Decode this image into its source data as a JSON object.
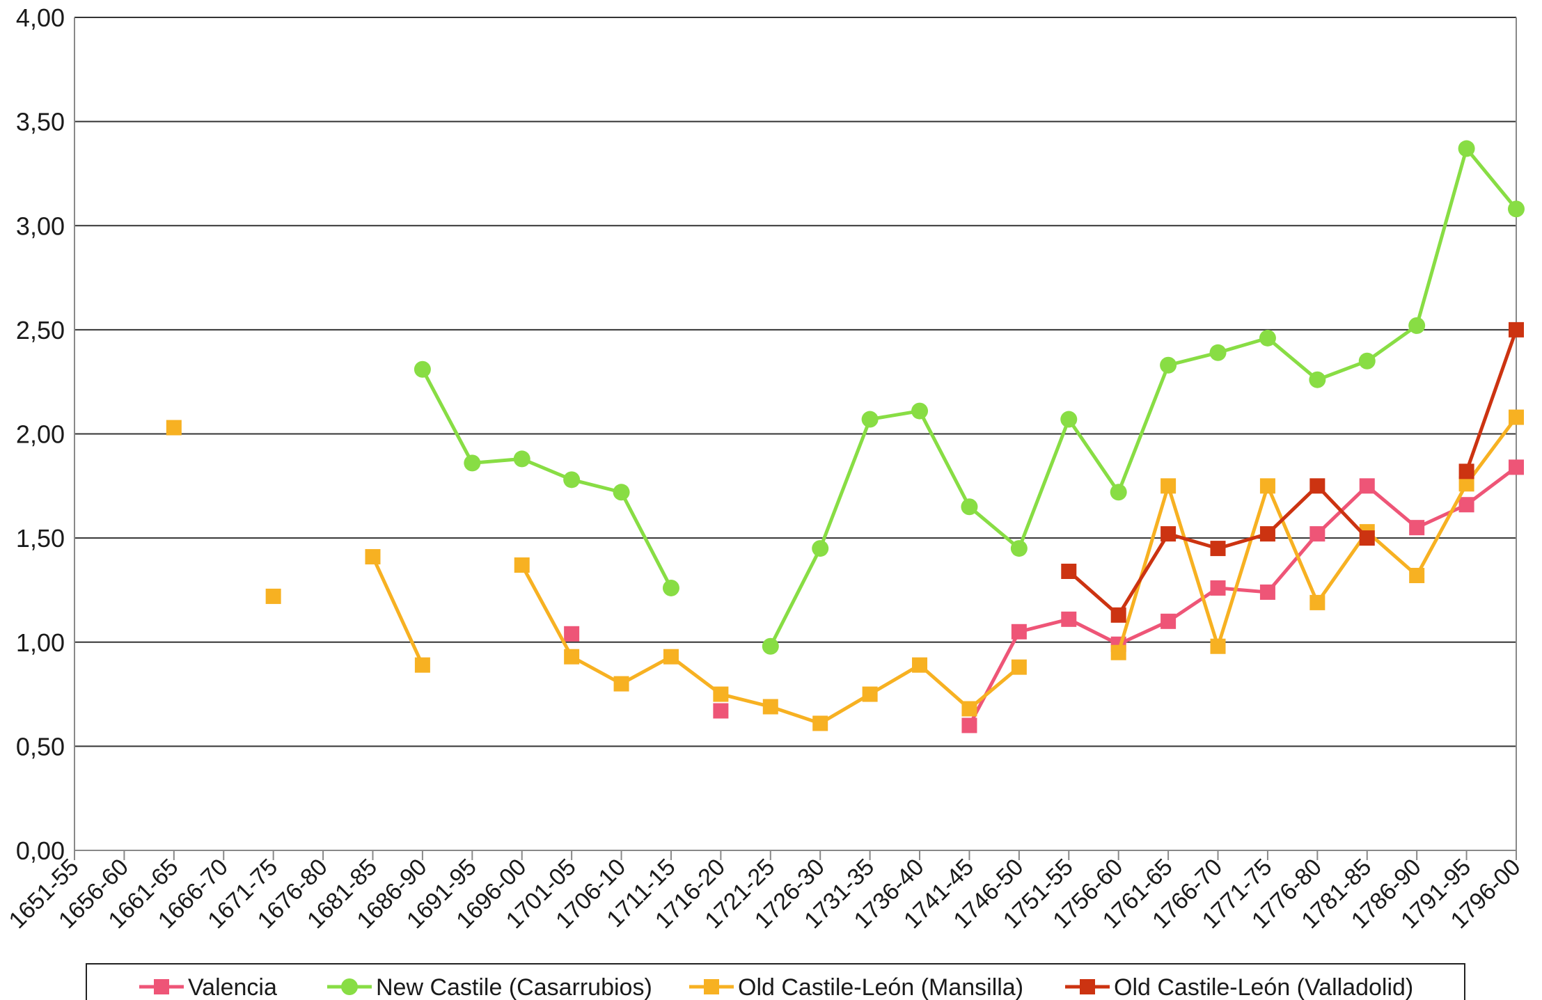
{
  "chart_data": {
    "type": "line",
    "title": "",
    "xlabel": "",
    "ylabel": "",
    "ylim": [
      0,
      4
    ],
    "y_ticks": [
      "0,00",
      "0,50",
      "1,00",
      "1,50",
      "2,00",
      "2,50",
      "3,00",
      "3,50",
      "4,00"
    ],
    "grid": true,
    "legend_position": "bottom",
    "categories": [
      "1651-55",
      "1656-60",
      "1661-65",
      "1666-70",
      "1671-75",
      "1676-80",
      "1681-85",
      "1686-90",
      "1691-95",
      "1696-00",
      "1701-05",
      "1706-10",
      "1711-15",
      "1716-20",
      "1721-25",
      "1726-30",
      "1731-35",
      "1736-40",
      "1741-45",
      "1746-50",
      "1751-55",
      "1756-60",
      "1761-65",
      "1766-70",
      "1771-75",
      "1776-80",
      "1781-85",
      "1786-90",
      "1791-95",
      "1796-00"
    ],
    "series": [
      {
        "name": "Valencia",
        "color": "#ee5577",
        "marker": "square",
        "values": [
          null,
          null,
          null,
          null,
          null,
          null,
          null,
          null,
          null,
          null,
          1.04,
          null,
          null,
          0.67,
          null,
          null,
          null,
          null,
          0.6,
          1.05,
          1.11,
          0.99,
          1.1,
          1.26,
          1.24,
          1.52,
          1.75,
          1.55,
          1.66,
          1.84
        ]
      },
      {
        "name": "New Castile (Casarrubios)",
        "color": "#88dd44",
        "marker": "circle",
        "values": [
          null,
          null,
          null,
          null,
          null,
          null,
          null,
          2.31,
          1.86,
          1.88,
          1.78,
          1.72,
          1.26,
          null,
          0.98,
          1.45,
          2.07,
          2.11,
          1.65,
          1.45,
          2.07,
          1.72,
          2.33,
          2.39,
          2.46,
          2.26,
          2.35,
          2.52,
          3.37,
          3.08
        ]
      },
      {
        "name": "Old Castile-León (Mansilla)",
        "color": "#f7b122",
        "marker": "square",
        "values": [
          null,
          null,
          2.03,
          null,
          1.22,
          null,
          1.41,
          0.89,
          null,
          1.37,
          0.93,
          0.8,
          0.93,
          0.75,
          0.69,
          0.61,
          0.75,
          0.89,
          0.68,
          0.88,
          null,
          0.95,
          1.75,
          0.98,
          1.75,
          1.19,
          1.53,
          1.32,
          1.76,
          2.08
        ]
      },
      {
        "name": "Old Castile-León (Valladolid)",
        "color": "#cc3311",
        "marker": "square",
        "values": [
          null,
          null,
          null,
          null,
          null,
          null,
          null,
          null,
          null,
          null,
          null,
          null,
          null,
          null,
          null,
          null,
          null,
          null,
          null,
          null,
          1.34,
          1.13,
          1.52,
          1.45,
          1.52,
          1.75,
          1.5,
          null,
          1.82,
          2.5
        ]
      }
    ]
  }
}
